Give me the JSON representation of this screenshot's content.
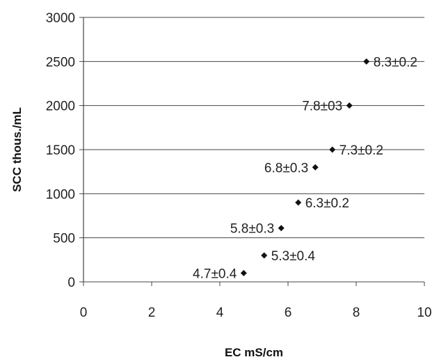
{
  "chart_data": {
    "type": "scatter",
    "title": "",
    "xlabel": "EC   mS/cm",
    "ylabel": "SCC thous./mL",
    "xlim": [
      0,
      10
    ],
    "ylim": [
      0,
      3000
    ],
    "x_ticks": [
      "0",
      "2",
      "4",
      "6",
      "8",
      "10"
    ],
    "y_ticks": [
      "0",
      "500",
      "1000",
      "1500",
      "2000",
      "2500",
      "3000"
    ],
    "grid": "horizontal",
    "legend": "none",
    "point_color": "#111111",
    "points": [
      {
        "x": 4.7,
        "y": 100,
        "label": "4.7±0.4",
        "label_side": "left"
      },
      {
        "x": 5.3,
        "y": 300,
        "label": "5.3±0.4",
        "label_side": "right"
      },
      {
        "x": 5.8,
        "y": 610,
        "label": "5.8±0.3",
        "label_side": "left"
      },
      {
        "x": 6.3,
        "y": 900,
        "label": "6.3±0.2",
        "label_side": "right"
      },
      {
        "x": 6.8,
        "y": 1300,
        "label": "6.8±0.3",
        "label_side": "left"
      },
      {
        "x": 7.3,
        "y": 1500,
        "label": "7.3±0.2",
        "label_side": "right"
      },
      {
        "x": 7.8,
        "y": 2000,
        "label": "7.8±03",
        "label_side": "left"
      },
      {
        "x": 8.3,
        "y": 2500,
        "label": "8.3±0.2",
        "label_side": "right"
      }
    ]
  }
}
